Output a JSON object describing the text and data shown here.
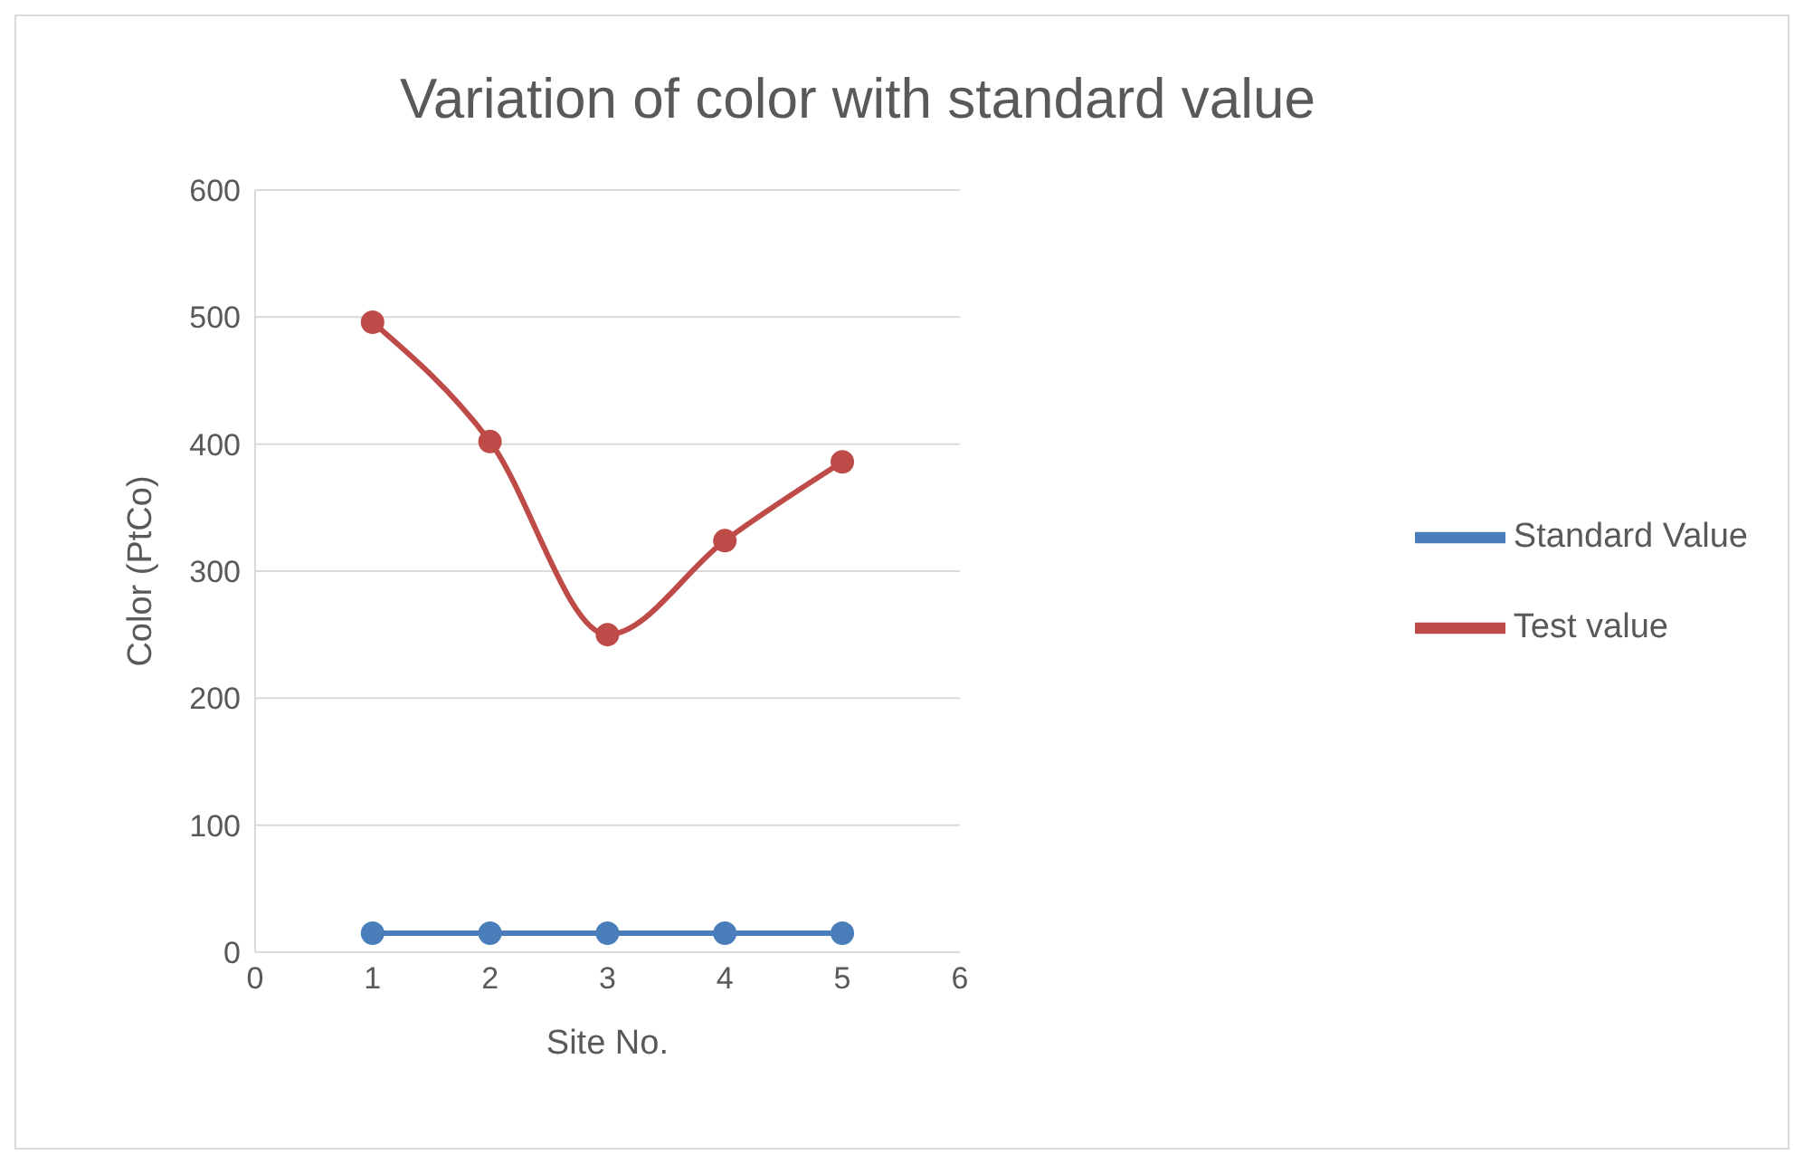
{
  "chart_data": {
    "type": "line",
    "title": "Variation of color with standard value",
    "xlabel": "Site No.",
    "ylabel": "Color (PtCo)",
    "x": [
      1,
      2,
      3,
      4,
      5
    ],
    "series": [
      {
        "name": "Standard Value",
        "color": "#4a7ebb",
        "values": [
          15,
          15,
          15,
          15,
          15
        ]
      },
      {
        "name": "Test value",
        "color": "#be4b48",
        "values": [
          496,
          402,
          250,
          324,
          386
        ]
      }
    ],
    "xlim": [
      0,
      6
    ],
    "xticks": [
      0,
      1,
      2,
      3,
      4,
      5,
      6
    ],
    "ylim": [
      0,
      600
    ],
    "yticks": [
      0,
      100,
      200,
      300,
      400,
      500,
      600
    ],
    "grid": "y",
    "legend": "right",
    "marker": "circle"
  }
}
